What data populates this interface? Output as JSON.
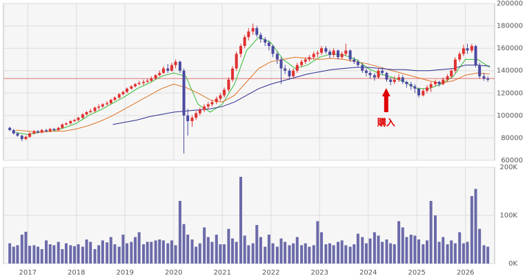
{
  "chart_data": {
    "type": "candlestick",
    "xlim": [
      2016.5,
      2026.6
    ],
    "xticks": [
      2017,
      2018,
      2019,
      2020,
      2021,
      2022,
      2023,
      2024,
      2025,
      2026
    ],
    "ylim": [
      60000,
      200000
    ],
    "yticks": [
      60000,
      80000,
      100000,
      120000,
      140000,
      160000,
      180000,
      200000
    ],
    "grid": true,
    "up_color": "#e03030",
    "down_color": "#4a4aa0",
    "x": [
      2016.63,
      2016.71,
      2016.79,
      2016.88,
      2016.96,
      2017.04,
      2017.13,
      2017.21,
      2017.29,
      2017.38,
      2017.46,
      2017.54,
      2017.63,
      2017.71,
      2017.79,
      2017.88,
      2017.96,
      2018.04,
      2018.13,
      2018.21,
      2018.29,
      2018.38,
      2018.46,
      2018.54,
      2018.63,
      2018.71,
      2018.79,
      2018.88,
      2018.96,
      2019.04,
      2019.13,
      2019.21,
      2019.29,
      2019.38,
      2019.46,
      2019.54,
      2019.63,
      2019.71,
      2019.79,
      2019.88,
      2019.96,
      2020.04,
      2020.13,
      2020.21,
      2020.29,
      2020.38,
      2020.46,
      2020.54,
      2020.63,
      2020.71,
      2020.79,
      2020.88,
      2020.96,
      2021.04,
      2021.13,
      2021.21,
      2021.29,
      2021.38,
      2021.46,
      2021.54,
      2021.63,
      2021.71,
      2021.79,
      2021.88,
      2021.96,
      2022.04,
      2022.13,
      2022.21,
      2022.29,
      2022.38,
      2022.46,
      2022.54,
      2022.63,
      2022.71,
      2022.79,
      2022.88,
      2022.96,
      2023.04,
      2023.13,
      2023.21,
      2023.29,
      2023.38,
      2023.46,
      2023.54,
      2023.63,
      2023.71,
      2023.79,
      2023.88,
      2023.96,
      2024.04,
      2024.13,
      2024.21,
      2024.29,
      2024.38,
      2024.46,
      2024.54,
      2024.63,
      2024.71,
      2024.79,
      2024.88,
      2024.96,
      2025.04,
      2025.13,
      2025.21,
      2025.29,
      2025.38,
      2025.46,
      2025.54,
      2025.63,
      2025.71,
      2025.79,
      2025.88,
      2025.96,
      2026.04,
      2026.13,
      2026.21,
      2026.29,
      2026.38,
      2026.46
    ],
    "ohlc": [
      [
        89000,
        90000,
        86000,
        87000
      ],
      [
        87000,
        88000,
        83000,
        84000
      ],
      [
        84000,
        85000,
        81000,
        82000
      ],
      [
        82000,
        83000,
        77000,
        79000
      ],
      [
        79000,
        82000,
        78000,
        81000
      ],
      [
        81000,
        85000,
        80000,
        84000
      ],
      [
        84000,
        87000,
        83000,
        86000
      ],
      [
        86000,
        87000,
        84000,
        85000
      ],
      [
        85000,
        88000,
        84000,
        87000
      ],
      [
        87000,
        88000,
        85000,
        86000
      ],
      [
        86000,
        89000,
        85000,
        88000
      ],
      [
        88000,
        89000,
        86000,
        87000
      ],
      [
        87000,
        90000,
        86000,
        89000
      ],
      [
        89000,
        93000,
        88000,
        92000
      ],
      [
        92000,
        94000,
        91000,
        93000
      ],
      [
        93000,
        96000,
        92000,
        95000
      ],
      [
        95000,
        97000,
        94000,
        96000
      ],
      [
        96000,
        99000,
        95000,
        98000
      ],
      [
        98000,
        102000,
        97000,
        101000
      ],
      [
        101000,
        104000,
        100000,
        103000
      ],
      [
        103000,
        106000,
        102000,
        104000
      ],
      [
        104000,
        108000,
        103000,
        107000
      ],
      [
        107000,
        110000,
        105000,
        108000
      ],
      [
        108000,
        111000,
        107000,
        110000
      ],
      [
        110000,
        113000,
        109000,
        111000
      ],
      [
        111000,
        115000,
        110000,
        114000
      ],
      [
        114000,
        117000,
        113000,
        116000
      ],
      [
        116000,
        120000,
        115000,
        119000
      ],
      [
        119000,
        122000,
        118000,
        121000
      ],
      [
        121000,
        125000,
        120000,
        124000
      ],
      [
        124000,
        127000,
        123000,
        126000
      ],
      [
        126000,
        129000,
        125000,
        128000
      ],
      [
        128000,
        131000,
        127000,
        129000
      ],
      [
        129000,
        132000,
        127000,
        130000
      ],
      [
        130000,
        133000,
        129000,
        131000
      ],
      [
        131000,
        135000,
        130000,
        133000
      ],
      [
        133000,
        137000,
        132000,
        136000
      ],
      [
        136000,
        140000,
        135000,
        138000
      ],
      [
        138000,
        144000,
        137000,
        142000
      ],
      [
        142000,
        146000,
        138000,
        140000
      ],
      [
        140000,
        147000,
        139000,
        145000
      ],
      [
        145000,
        150000,
        142000,
        148000
      ],
      [
        148000,
        149000,
        138000,
        140000
      ],
      [
        140000,
        142000,
        66000,
        100000
      ],
      [
        100000,
        106000,
        82000,
        95000
      ],
      [
        95000,
        100000,
        90000,
        98000
      ],
      [
        98000,
        104000,
        96000,
        102000
      ],
      [
        102000,
        107000,
        100000,
        105000
      ],
      [
        105000,
        110000,
        103000,
        108000
      ],
      [
        108000,
        112000,
        106000,
        110000
      ],
      [
        110000,
        114000,
        108000,
        112000
      ],
      [
        112000,
        117000,
        110000,
        115000
      ],
      [
        115000,
        120000,
        113000,
        118000
      ],
      [
        118000,
        125000,
        116000,
        123000
      ],
      [
        123000,
        134000,
        121000,
        132000
      ],
      [
        132000,
        144000,
        130000,
        142000
      ],
      [
        142000,
        157000,
        140000,
        155000
      ],
      [
        155000,
        164000,
        152000,
        162000
      ],
      [
        162000,
        172000,
        160000,
        170000
      ],
      [
        170000,
        178000,
        167000,
        175000
      ],
      [
        175000,
        182000,
        172000,
        178000
      ],
      [
        178000,
        180000,
        170000,
        172000
      ],
      [
        172000,
        174000,
        165000,
        168000
      ],
      [
        168000,
        170000,
        162000,
        165000
      ],
      [
        165000,
        167000,
        158000,
        162000
      ],
      [
        162000,
        163000,
        152000,
        155000
      ],
      [
        155000,
        157000,
        146000,
        150000
      ],
      [
        150000,
        152000,
        128000,
        142000
      ],
      [
        142000,
        145000,
        137000,
        140000
      ],
      [
        140000,
        142000,
        132000,
        135000
      ],
      [
        135000,
        142000,
        134000,
        140000
      ],
      [
        140000,
        147000,
        138000,
        145000
      ],
      [
        145000,
        150000,
        143000,
        148000
      ],
      [
        148000,
        152000,
        146000,
        150000
      ],
      [
        150000,
        154000,
        148000,
        152000
      ],
      [
        152000,
        157000,
        150000,
        155000
      ],
      [
        155000,
        158000,
        152000,
        156000
      ],
      [
        156000,
        162000,
        154000,
        160000
      ],
      [
        160000,
        162000,
        155000,
        157000
      ],
      [
        157000,
        159000,
        151000,
        154000
      ],
      [
        154000,
        160000,
        152000,
        158000
      ],
      [
        158000,
        159000,
        150000,
        152000
      ],
      [
        152000,
        157000,
        150000,
        155000
      ],
      [
        155000,
        164000,
        153000,
        158000
      ],
      [
        158000,
        159000,
        148000,
        150000
      ],
      [
        150000,
        152000,
        146000,
        148000
      ],
      [
        148000,
        150000,
        143000,
        145000
      ],
      [
        145000,
        147000,
        138000,
        140000
      ],
      [
        140000,
        142000,
        135000,
        138000
      ],
      [
        138000,
        140000,
        133000,
        136000
      ],
      [
        136000,
        138000,
        131000,
        134000
      ],
      [
        134000,
        142000,
        133000,
        140000
      ],
      [
        140000,
        143000,
        136000,
        138000
      ],
      [
        138000,
        139000,
        130000,
        132000
      ],
      [
        132000,
        134000,
        127000,
        130000
      ],
      [
        130000,
        135000,
        128000,
        132000
      ],
      [
        132000,
        137000,
        130000,
        134000
      ],
      [
        134000,
        136000,
        128000,
        130000
      ],
      [
        130000,
        131000,
        125000,
        128000
      ],
      [
        128000,
        130000,
        123000,
        126000
      ],
      [
        126000,
        128000,
        120000,
        124000
      ],
      [
        124000,
        125000,
        116000,
        118000
      ],
      [
        118000,
        124000,
        117000,
        122000
      ],
      [
        122000,
        127000,
        120000,
        125000
      ],
      [
        125000,
        130000,
        121000,
        128000
      ],
      [
        128000,
        132000,
        126000,
        130000
      ],
      [
        130000,
        131000,
        126000,
        128000
      ],
      [
        128000,
        134000,
        127000,
        132000
      ],
      [
        132000,
        137000,
        130000,
        135000
      ],
      [
        135000,
        142000,
        133000,
        140000
      ],
      [
        140000,
        152000,
        138000,
        150000
      ],
      [
        150000,
        157000,
        148000,
        155000
      ],
      [
        155000,
        163000,
        153000,
        160000
      ],
      [
        160000,
        164000,
        155000,
        158000
      ],
      [
        158000,
        164000,
        156000,
        162000
      ],
      [
        162000,
        163000,
        143000,
        145000
      ],
      [
        145000,
        147000,
        133000,
        135000
      ],
      [
        135000,
        138000,
        131000,
        133000
      ],
      [
        133000,
        135000,
        130000,
        132000
      ]
    ],
    "moving_averages": [
      {
        "color": "#33bb33",
        "x": [
          2016.75,
          2017.0,
          2017.25,
          2017.5,
          2017.75,
          2018.0,
          2018.25,
          2018.5,
          2018.75,
          2019.0,
          2019.25,
          2019.5,
          2019.75,
          2020.0,
          2020.25,
          2020.5,
          2020.75,
          2021.0,
          2021.25,
          2021.5,
          2021.75,
          2022.0,
          2022.25,
          2022.5,
          2022.75,
          2023.0,
          2023.25,
          2023.5,
          2023.75,
          2024.0,
          2024.25,
          2024.5,
          2024.75,
          2025.0,
          2025.25,
          2025.5,
          2025.75,
          2026.0,
          2026.25,
          2026.5
        ],
        "values": [
          85000,
          83000,
          85000,
          86000,
          89000,
          93000,
          100000,
          105000,
          111000,
          117000,
          124000,
          129000,
          135000,
          138000,
          135000,
          110000,
          103000,
          110000,
          128000,
          158000,
          170000,
          165000,
          150000,
          142000,
          145000,
          152000,
          155000,
          154000,
          150000,
          142000,
          137000,
          134000,
          130000,
          124000,
          124000,
          128000,
          135000,
          150000,
          150000,
          143000
        ]
      },
      {
        "color": "#e07020",
        "x": [
          2016.75,
          2017.0,
          2017.25,
          2017.5,
          2017.75,
          2018.0,
          2018.25,
          2018.5,
          2018.75,
          2019.0,
          2019.25,
          2019.5,
          2019.75,
          2020.0,
          2020.25,
          2020.5,
          2020.75,
          2021.0,
          2021.25,
          2021.5,
          2021.75,
          2022.0,
          2022.25,
          2022.5,
          2022.75,
          2023.0,
          2023.25,
          2023.5,
          2023.75,
          2024.0,
          2024.25,
          2024.5,
          2024.75,
          2025.0,
          2025.25,
          2025.5,
          2025.75,
          2026.0,
          2026.25,
          2026.5
        ],
        "values": [
          87000,
          86000,
          85000,
          86000,
          86000,
          88000,
          91000,
          95000,
          100000,
          106000,
          112000,
          118000,
          124000,
          128000,
          125000,
          120000,
          114000,
          112000,
          118000,
          130000,
          142000,
          148000,
          150000,
          152000,
          151000,
          150000,
          151000,
          150000,
          148000,
          146000,
          143000,
          140000,
          137000,
          134000,
          131000,
          129000,
          131000,
          136000,
          138000,
          137000
        ]
      },
      {
        "color": "#2a2a90",
        "x": [
          2018.75,
          2019.0,
          2019.25,
          2019.5,
          2019.75,
          2020.0,
          2020.25,
          2020.5,
          2020.75,
          2021.0,
          2021.25,
          2021.5,
          2021.75,
          2022.0,
          2022.25,
          2022.5,
          2022.75,
          2023.0,
          2023.25,
          2023.5,
          2023.75,
          2024.0,
          2024.25,
          2024.5,
          2024.75,
          2025.0,
          2025.25,
          2025.5,
          2025.75,
          2026.0,
          2026.25,
          2026.5
        ],
        "values": [
          92000,
          94000,
          96000,
          99000,
          101000,
          103000,
          104000,
          105000,
          106000,
          108000,
          112000,
          118000,
          124000,
          128000,
          131000,
          134000,
          137000,
          139000,
          141000,
          142000,
          143000,
          143000,
          142000,
          141000,
          141000,
          140000,
          140000,
          141000,
          142000,
          145000,
          145000,
          144000
        ]
      }
    ],
    "reference_line": {
      "value": 133000,
      "color": "#e07070"
    },
    "annotation": {
      "text": "購入",
      "x": 2024.37,
      "color": "#e00000"
    },
    "volume": {
      "color": "#6a6aaa",
      "ylim": [
        0,
        200000
      ],
      "yticks": [
        {
          "value": 0,
          "label": "0K"
        },
        {
          "value": 100000,
          "label": "100K"
        },
        {
          "value": 200000,
          "label": "200K"
        }
      ],
      "values": [
        42000,
        35000,
        38000,
        60000,
        66000,
        37000,
        38000,
        35000,
        30000,
        48000,
        40000,
        38000,
        45000,
        30000,
        42000,
        38000,
        36000,
        40000,
        35000,
        50000,
        45000,
        30000,
        38000,
        48000,
        44000,
        55000,
        40000,
        35000,
        60000,
        42000,
        45000,
        55000,
        65000,
        40000,
        45000,
        45000,
        48000,
        50000,
        48000,
        42000,
        48000,
        38000,
        130000,
        82000,
        60000,
        50000,
        35000,
        42000,
        75000,
        55000,
        45000,
        60000,
        40000,
        40000,
        72000,
        52000,
        45000,
        180000,
        58000,
        38000,
        42000,
        80000,
        55000,
        35000,
        60000,
        42000,
        35000,
        52000,
        45000,
        38000,
        42000,
        55000,
        38000,
        42000,
        35000,
        38000,
        88000,
        65000,
        40000,
        42000,
        38000,
        45000,
        48000,
        38000,
        35000,
        40000,
        62000,
        55000,
        42000,
        52000,
        65000,
        58000,
        45000,
        50000,
        42000,
        40000,
        88000,
        75000,
        55000,
        60000,
        58000,
        50000,
        40000,
        48000,
        130000,
        100000,
        45000,
        55000,
        40000,
        48000,
        42000,
        65000,
        42000,
        45000,
        140000,
        155000,
        72000,
        38000,
        35000
      ]
    }
  }
}
